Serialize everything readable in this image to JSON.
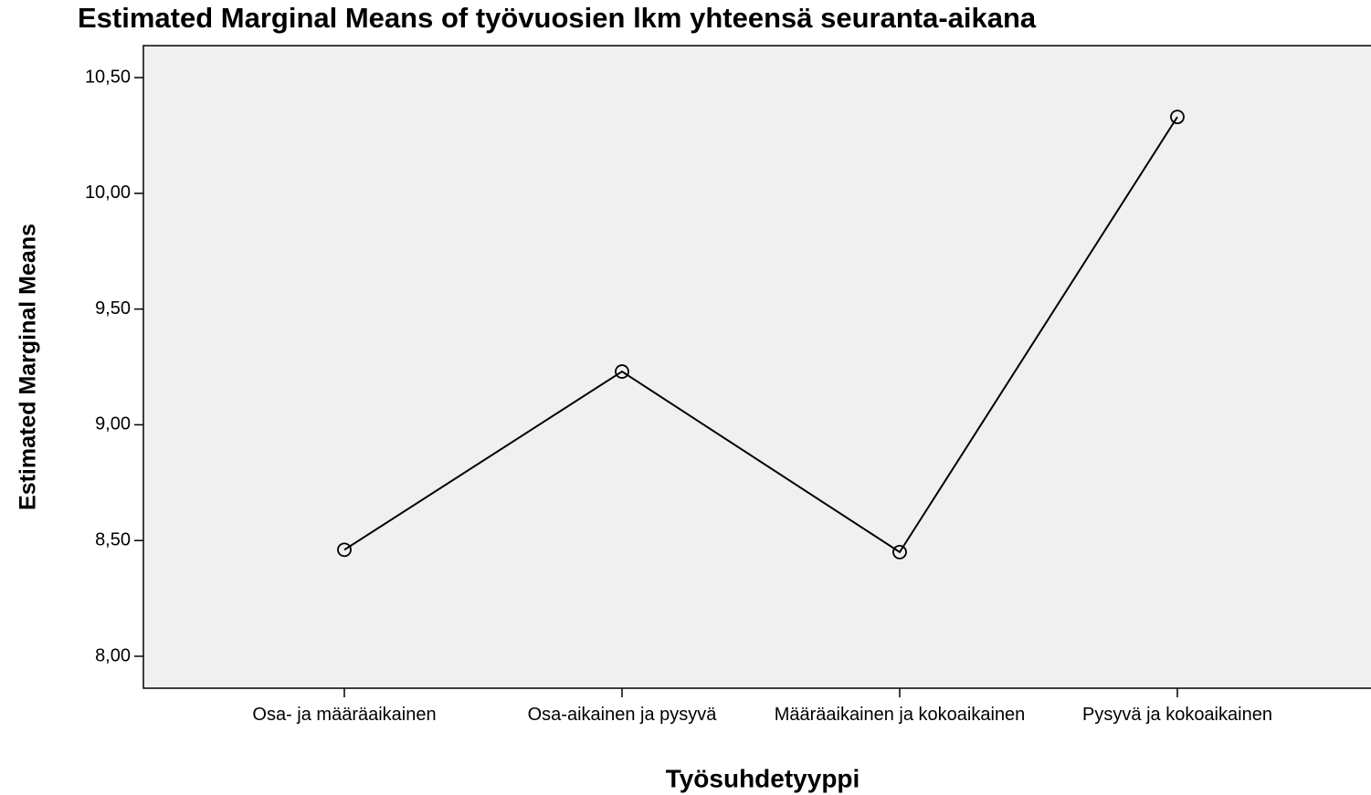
{
  "chart_data": {
    "type": "line",
    "title": "Estimated Marginal Means of työvuosien lkm yhteensä seuranta-aikana",
    "x_label": "Työsuhdetyyppi",
    "y_label": "Estimated Marginal Means",
    "categories": [
      "Osa- ja määräaikainen",
      "Osa-aikainen ja pysyvä",
      "Määräaikainen ja kokoaikainen",
      "Pysyvä ja kokoaikainen"
    ],
    "values": [
      8.46,
      9.23,
      8.45,
      10.33
    ],
    "color": "#000000",
    "ylim": [
      7.862,
      10.638
    ],
    "yticks": [
      {
        "value": 8,
        "label": "8,00"
      },
      {
        "value": 8.5,
        "label": "8,50"
      },
      {
        "value": 9,
        "label": "9,00"
      },
      {
        "value": 9.5,
        "label": "9,50"
      },
      {
        "value": 10,
        "label": "10,00"
      },
      {
        "value": 10.5,
        "label": "10,50"
      }
    ],
    "grid": false
  }
}
